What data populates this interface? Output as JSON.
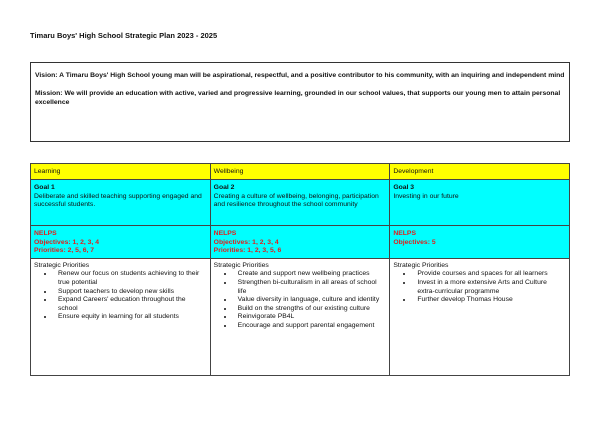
{
  "title": "Timaru Boys' High School Strategic Plan 2023 - 2025",
  "vision": "Vision: A Timaru Boys' High School young man will be aspirational, respectful, and a positive contributor to his community, with an inquiring and independent mind",
  "mission": "Mission: We will provide an education with active, varied and progressive learning, grounded in our school values, that supports our young men to attain personal excellence",
  "colors": {
    "header": "#ffff00",
    "goal": "#00ffff",
    "nelps": "#e0201c"
  },
  "columns": [
    {
      "heading": "Learning",
      "goal_title": "Goal 1",
      "goal_text": "Deliberate and skilled teaching supporting engaged and successful students.",
      "nelps": "NELPS",
      "objectives": "Objectives: 1, 2, 3, 4",
      "priorities": "Priorities: 2, 5, 6, 7",
      "sp_heading": "Strategic Priorities",
      "items": [
        "Renew our focus on students achieving to their true potential",
        "Support teachers to develop new skills",
        "Expand Careers' education throughout the school",
        "Ensure equity in learning for all students"
      ]
    },
    {
      "heading": "Wellbeing",
      "goal_title": "Goal 2",
      "goal_text": "Creating a culture of wellbeing, belonging, participation and resilience throughout the school community",
      "nelps": "NELPS",
      "objectives": "Objectives: 1, 2, 3, 4",
      "priorities": "Priorities: 1, 2, 3, 5, 6",
      "sp_heading": "Strategic Priorities",
      "items": [
        "Create and support new wellbeing practices",
        "Strengthen bi-culturalism in all areas of school life",
        "Value diversity in language, culture and identity",
        "Build on the strengths of our existing culture",
        "Reinvigorate PB4L",
        "Encourage and support parental engagement"
      ]
    },
    {
      "heading": "Development",
      "goal_title": "Goal 3",
      "goal_text": "Investing in our future",
      "nelps": "NELPS",
      "objectives": "Objectives: 5",
      "sp_heading": "Strategic Priorities",
      "items": [
        "Provide courses and spaces for all learners",
        "Invest in a more extensive Arts and Culture extra-curricular programme",
        "Further develop Thomas House"
      ]
    }
  ]
}
